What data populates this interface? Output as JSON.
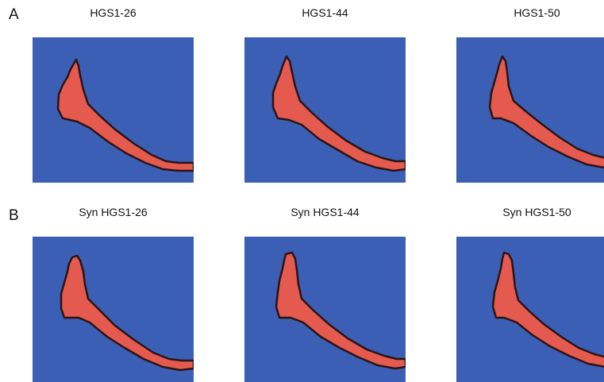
{
  "rows": [
    {
      "label": "A",
      "panels": [
        {
          "title": "HGS1-26"
        },
        {
          "title": "HGS1-44"
        },
        {
          "title": "HGS1-50"
        }
      ]
    },
    {
      "label": "B",
      "panels": [
        {
          "title": "Syn HGS1-26"
        },
        {
          "title": "Syn HGS1-44"
        },
        {
          "title": "Syn HGS1-50"
        }
      ]
    }
  ],
  "colors": {
    "background_field": "#3b5fb4",
    "shape_fill": "#e45a4f",
    "shape_outline": "#2a1414"
  }
}
